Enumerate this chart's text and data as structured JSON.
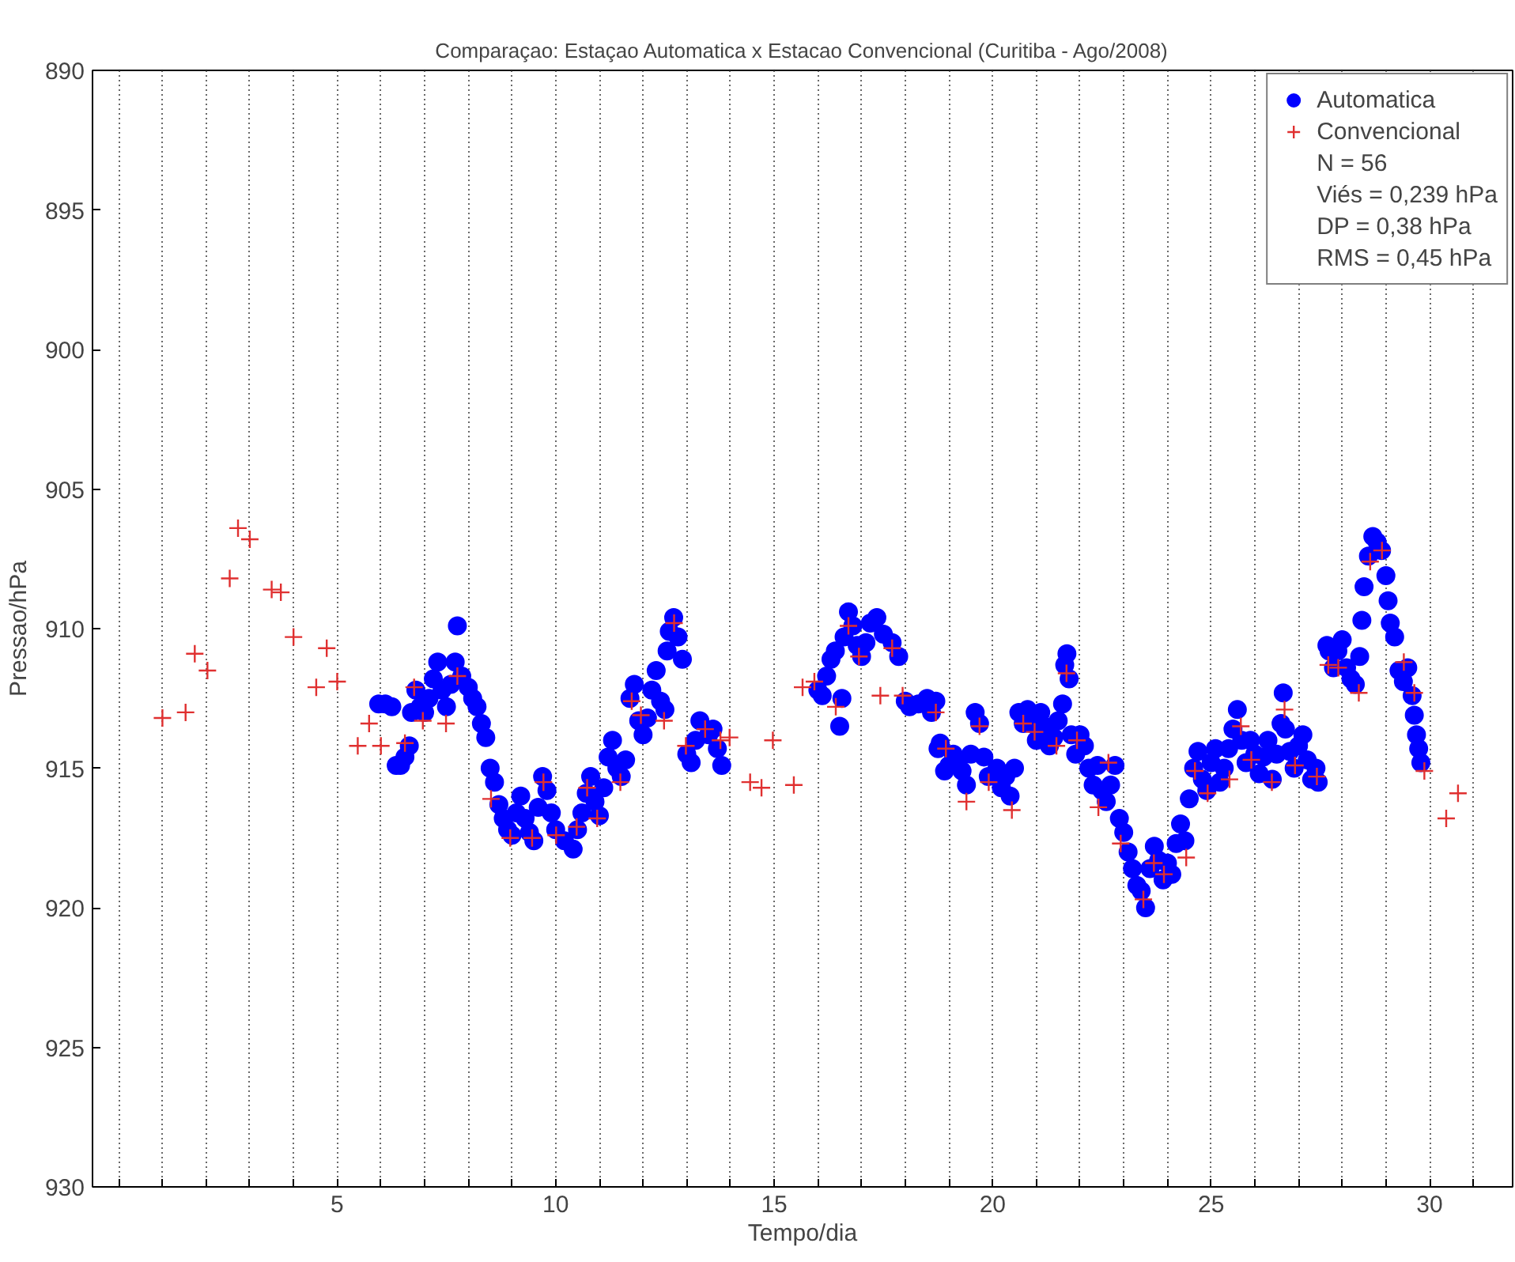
{
  "chart_data": {
    "type": "scatter",
    "title": "Comparaçao: Estaçao Automatica x Estacao Convencional (Curitiba - Ago/2008)",
    "xlabel": "Tempo/dia",
    "ylabel": "Pressao/hPa",
    "xlim": [
      -0.6,
      31.9
    ],
    "ylim": [
      930,
      890
    ],
    "xticks": [
      {
        "value": 0,
        "label": null
      },
      {
        "value": 1,
        "label": null
      },
      {
        "value": 2,
        "label": null
      },
      {
        "value": 3,
        "label": null
      },
      {
        "value": 4,
        "label": null
      },
      5,
      {
        "value": 6,
        "label": null
      },
      {
        "value": 7,
        "label": null
      },
      {
        "value": 8,
        "label": null
      },
      {
        "value": 9,
        "label": null
      },
      10,
      {
        "value": 11,
        "label": null
      },
      {
        "value": 12,
        "label": null
      },
      {
        "value": 13,
        "label": null
      },
      {
        "value": 14,
        "label": null
      },
      15,
      {
        "value": 16,
        "label": null
      },
      {
        "value": 17,
        "label": null
      },
      {
        "value": 18,
        "label": null
      },
      {
        "value": 19,
        "label": null
      },
      20,
      {
        "value": 21,
        "label": null
      },
      {
        "value": 22,
        "label": null
      },
      {
        "value": 23,
        "label": null
      },
      {
        "value": 24,
        "label": null
      },
      25,
      {
        "value": 26,
        "label": null
      },
      {
        "value": 27,
        "label": null
      },
      {
        "value": 28,
        "label": null
      },
      {
        "value": 29,
        "label": null
      },
      30,
      {
        "value": 31,
        "label": null
      }
    ],
    "yticks": [
      890,
      895,
      900,
      905,
      910,
      915,
      920,
      925,
      930
    ],
    "grid": "x",
    "legend": "top right",
    "annotations": [
      "N = 56",
      "Viés = 0,239 hPa",
      "DP = 0,38 hPa",
      "RMS = 0,45 hPa"
    ],
    "series": [
      {
        "name": "Automatica",
        "color": "#0000ff",
        "marker": "circle",
        "x": [
          5.95,
          6.1,
          6.25,
          6.35,
          6.45,
          6.55,
          6.65,
          6.7,
          6.8,
          6.9,
          7.0,
          7.1,
          7.2,
          7.3,
          7.4,
          7.5,
          7.6,
          7.7,
          7.75,
          7.85,
          8.0,
          8.1,
          8.2,
          8.3,
          8.4,
          8.5,
          8.6,
          8.7,
          8.8,
          8.9,
          9.0,
          9.1,
          9.2,
          9.3,
          9.4,
          9.5,
          9.6,
          9.7,
          9.8,
          9.9,
          10.0,
          10.2,
          10.4,
          10.5,
          10.6,
          10.7,
          10.8,
          10.9,
          11.0,
          11.1,
          11.2,
          11.3,
          11.4,
          11.5,
          11.6,
          11.7,
          11.8,
          11.9,
          12.0,
          12.1,
          12.2,
          12.3,
          12.4,
          12.5,
          12.55,
          12.6,
          12.7,
          12.8,
          12.9,
          13.0,
          13.1,
          13.2,
          13.3,
          13.5,
          13.6,
          13.7,
          13.8,
          16.0,
          16.1,
          16.2,
          16.3,
          16.4,
          16.5,
          16.55,
          16.6,
          16.7,
          16.8,
          16.9,
          17.0,
          17.1,
          17.2,
          17.35,
          17.5,
          17.7,
          17.85,
          18.0,
          18.1,
          18.3,
          18.5,
          18.6,
          18.7,
          18.75,
          18.8,
          18.9,
          19.0,
          19.1,
          19.2,
          19.3,
          19.4,
          19.5,
          19.6,
          19.7,
          19.8,
          19.9,
          20.1,
          20.2,
          20.3,
          20.4,
          20.5,
          20.6,
          20.7,
          20.8,
          20.9,
          21.0,
          21.1,
          21.2,
          21.3,
          21.4,
          21.5,
          21.6,
          21.65,
          21.7,
          21.75,
          21.8,
          21.9,
          22.0,
          22.1,
          22.2,
          22.3,
          22.4,
          22.5,
          22.6,
          22.7,
          22.8,
          22.9,
          23.0,
          23.1,
          23.2,
          23.3,
          23.4,
          23.5,
          23.6,
          23.7,
          23.8,
          23.9,
          24.0,
          24.1,
          24.2,
          24.3,
          24.4,
          24.5,
          24.6,
          24.7,
          24.8,
          24.9,
          25.0,
          25.1,
          25.2,
          25.3,
          25.4,
          25.5,
          25.6,
          25.7,
          25.8,
          25.9,
          26.0,
          26.1,
          26.2,
          26.3,
          26.4,
          26.5,
          26.6,
          26.65,
          26.7,
          26.8,
          26.9,
          27.0,
          27.1,
          27.2,
          27.3,
          27.4,
          27.45,
          27.65,
          27.7,
          27.8,
          27.9,
          28.0,
          28.1,
          28.2,
          28.3,
          28.4,
          28.45,
          28.5,
          28.6,
          28.7,
          28.8,
          28.9,
          29.0,
          29.05,
          29.1,
          29.2,
          29.3,
          29.4,
          29.5,
          29.6,
          29.65,
          29.7,
          29.75,
          29.8
        ],
        "values": [
          912.7,
          912.7,
          912.8,
          914.9,
          914.9,
          914.6,
          914.2,
          913.0,
          912.2,
          912.8,
          913.0,
          912.5,
          911.8,
          911.2,
          912.2,
          912.8,
          912.0,
          911.2,
          909.9,
          911.7,
          912.1,
          912.5,
          912.8,
          913.4,
          913.9,
          915.0,
          915.5,
          916.3,
          916.8,
          917.2,
          917.4,
          916.6,
          916.0,
          916.8,
          917.3,
          917.6,
          916.4,
          915.3,
          915.8,
          916.6,
          917.2,
          917.6,
          917.9,
          917.2,
          916.6,
          915.9,
          915.3,
          916.2,
          916.7,
          915.7,
          914.6,
          914.0,
          915.0,
          915.3,
          914.7,
          912.5,
          912.0,
          913.3,
          913.8,
          913.2,
          912.2,
          911.5,
          912.6,
          912.9,
          910.8,
          910.1,
          909.6,
          910.3,
          911.1,
          914.5,
          914.8,
          914.0,
          913.3,
          913.8,
          913.6,
          914.3,
          914.9,
          912.2,
          912.4,
          911.7,
          911.1,
          910.8,
          913.5,
          912.5,
          910.3,
          909.4,
          909.9,
          910.6,
          911.0,
          910.5,
          909.8,
          909.6,
          910.2,
          910.5,
          911.0,
          912.6,
          912.8,
          912.7,
          912.5,
          913.0,
          912.6,
          914.3,
          914.1,
          915.1,
          914.9,
          914.5,
          914.8,
          915.1,
          915.6,
          914.5,
          913.0,
          913.4,
          914.6,
          915.3,
          915.0,
          915.7,
          915.3,
          916.0,
          915.0,
          913.0,
          913.4,
          912.9,
          913.4,
          914.0,
          913.0,
          913.5,
          914.2,
          913.9,
          913.3,
          912.7,
          911.3,
          910.9,
          911.8,
          913.8,
          914.5,
          913.8,
          914.2,
          915.0,
          915.6,
          914.9,
          915.8,
          916.2,
          915.6,
          914.9,
          916.8,
          917.3,
          918.0,
          918.6,
          919.2,
          919.4,
          920.0,
          918.6,
          917.8,
          918.3,
          919.0,
          918.4,
          918.8,
          917.7,
          917.0,
          917.6,
          916.1,
          915.0,
          914.4,
          915.4,
          915.8,
          914.8,
          914.3,
          915.5,
          915.0,
          914.3,
          913.6,
          912.9,
          914.0,
          914.8,
          914.0,
          914.5,
          915.2,
          914.6,
          914.0,
          915.4,
          914.5,
          913.4,
          912.3,
          913.6,
          914.4,
          915.0,
          914.2,
          913.8,
          914.7,
          915.4,
          915.0,
          915.5,
          910.6,
          910.8,
          911.4,
          910.8,
          910.4,
          911.4,
          911.8,
          912.0,
          911.0,
          909.7,
          908.5,
          907.4,
          906.7,
          906.9,
          907.2,
          908.1,
          909.0,
          909.8,
          910.3,
          911.5,
          911.9,
          911.4,
          912.4,
          913.1,
          913.8,
          914.3,
          914.8
        ]
      },
      {
        "name": "Convencional",
        "color": "#e03030",
        "marker": "cross",
        "x": [
          1.0,
          1.53,
          1.74,
          2.03,
          2.54,
          2.73,
          3.0,
          3.5,
          3.71,
          4.0,
          4.52,
          4.76,
          5.0,
          5.47,
          5.73,
          6.0,
          6.55,
          6.76,
          6.96,
          7.49,
          7.75,
          8.52,
          8.96,
          9.46,
          9.72,
          10.01,
          10.48,
          10.72,
          10.95,
          11.48,
          11.74,
          11.95,
          12.48,
          12.71,
          12.98,
          13.42,
          13.77,
          13.98,
          14.45,
          14.71,
          14.97,
          15.45,
          15.65,
          15.92,
          16.41,
          16.7,
          16.94,
          17.43,
          17.7,
          17.94,
          18.7,
          18.93,
          19.4,
          19.7,
          19.91,
          20.44,
          20.7,
          20.96,
          21.46,
          21.69,
          21.93,
          22.42,
          22.65,
          22.93,
          23.45,
          23.69,
          23.92,
          24.43,
          24.63,
          24.92,
          25.42,
          25.68,
          25.92,
          26.39,
          26.68,
          26.92,
          27.42,
          27.68,
          27.91,
          28.38,
          28.64,
          28.91,
          29.41,
          29.65,
          29.88,
          30.38,
          30.65
        ],
        "values": [
          913.2,
          913.0,
          910.9,
          911.5,
          908.2,
          906.4,
          906.8,
          908.6,
          908.7,
          910.3,
          912.1,
          910.7,
          911.9,
          914.2,
          913.4,
          914.2,
          914.1,
          912.1,
          913.3,
          913.4,
          911.7,
          916.1,
          917.5,
          917.5,
          915.5,
          917.4,
          917.1,
          915.7,
          916.8,
          915.5,
          912.6,
          913.1,
          913.3,
          909.8,
          914.2,
          913.6,
          914.0,
          913.9,
          915.5,
          915.7,
          914.0,
          915.6,
          912.1,
          911.9,
          912.8,
          909.9,
          911.0,
          912.4,
          910.7,
          912.4,
          913.0,
          914.3,
          916.2,
          913.5,
          915.5,
          916.5,
          913.4,
          913.7,
          914.2,
          911.6,
          914.0,
          916.4,
          914.8,
          917.7,
          919.7,
          918.4,
          918.8,
          918.2,
          915.1,
          915.9,
          915.4,
          913.5,
          914.7,
          915.5,
          912.9,
          914.9,
          915.3,
          911.3,
          911.4,
          912.3,
          907.6,
          907.2,
          911.2,
          912.3,
          915.1,
          916.8,
          915.9
        ]
      }
    ]
  }
}
